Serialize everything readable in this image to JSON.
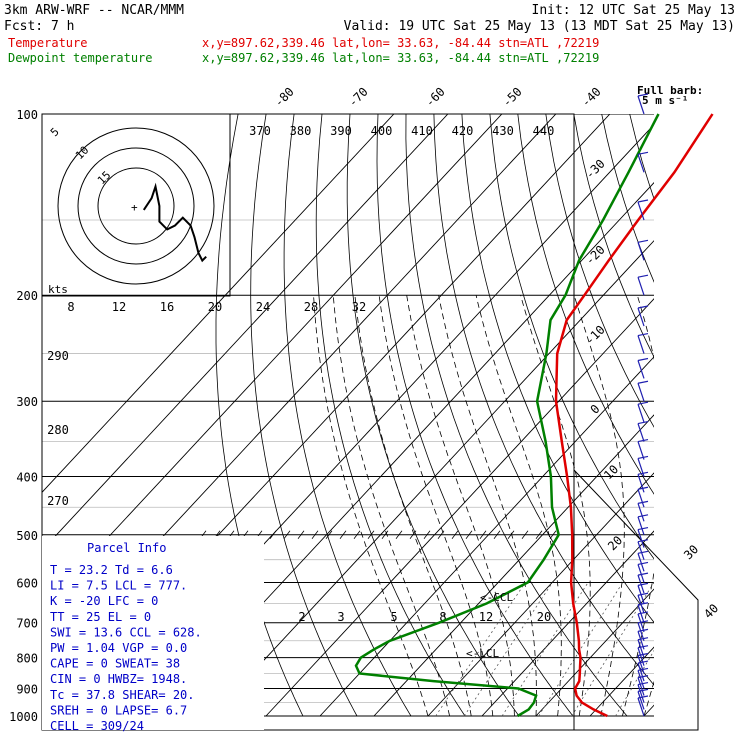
{
  "header": {
    "model": "3km ARW-WRF -- NCAR/MMM",
    "init": "Init: 12 UTC Sat 25 May 13",
    "fcst": "Fcst:    7 h",
    "valid": "Valid: 19 UTC Sat 25 May 13 (13 MDT Sat 25 May 13)",
    "temp_label": "Temperature",
    "temp_info": "x,y=897.62,339.46   lat,lon= 33.63, -84.44  stn=ATL ,72219",
    "dew_label": "Dewpoint temperature",
    "dew_info": "x,y=897.62,339.46   lat,lon= 33.63, -84.44  stn=ATL ,72219"
  },
  "colors": {
    "temperature": "#e00000",
    "dewpoint": "#008000",
    "parcel_text": "#0000c8",
    "wind": "#2020b0"
  },
  "full_barb": "Full barb:",
  "full_barb_units": "5 m s⁻¹",
  "hodograph": {
    "kts_label": "kts",
    "ring_labels": [
      "15",
      "10",
      "5"
    ],
    "speed_ticks": [
      "8",
      "12",
      "16",
      "20",
      "24",
      "28",
      "32"
    ]
  },
  "parcel_info": {
    "title": "Parcel Info",
    "rows": [
      "T  =   23.2 Td =   6.6",
      "LI =    7.5 LCL =  777.",
      "K  =    -20 LFC =    0",
      "TT =     25 EL  =    0",
      "SWI =  13.6 CCL =  628.",
      "PW =  1.04 VGP =  0.0",
      "CAPE =    0 SWEAT=   38",
      "CIN =     0 HWBZ= 1948.",
      "Tc =   37.8 SHEAR=  20.",
      "SREH =    0 LAPSE=  6.7",
      "CELL = 309/24"
    ]
  },
  "markers": {
    "ccl": "CCL",
    "lcl": "LCL"
  },
  "chart_data": {
    "type": "line",
    "title": "",
    "y_axis": {
      "scale": "log pressure",
      "ylim": [
        1000,
        100
      ],
      "ticks": [
        100,
        200,
        300,
        400,
        500,
        600,
        700,
        800,
        900,
        1000
      ]
    },
    "temperature_isotherm_labels": [
      "-80",
      "-70",
      "-60",
      "-50",
      "-40",
      "-30",
      "-20",
      "-10",
      "0",
      "10",
      "20",
      "30",
      "40"
    ],
    "theta_labels": [
      "370",
      "380",
      "390",
      "400",
      "410",
      "420",
      "430",
      "440"
    ],
    "left_theta_labels": [
      "290",
      "280",
      "270"
    ],
    "mixing_ratio_labels": [
      "2",
      "3",
      "5",
      "8",
      "12",
      "20"
    ],
    "series": [
      {
        "name": "Temperature",
        "pressure": [
          1000,
          975,
          950,
          925,
          900,
          875,
          850,
          825,
          800,
          775,
          750,
          700,
          650,
          600,
          550,
          500,
          450,
          400,
          350,
          300,
          250,
          220,
          200,
          175,
          150,
          125,
          100
        ],
        "temperature": [
          23.2,
          19.5,
          16.2,
          14.0,
          12.5,
          12.0,
          10.8,
          9.5,
          8.2,
          6.5,
          5.0,
          1.5,
          -2.5,
          -6.5,
          -10.2,
          -14.5,
          -19.5,
          -25.5,
          -32.5,
          -40.5,
          -48.5,
          -52.5,
          -53.5,
          -55.0,
          -56.5,
          -58.0,
          -61.0
        ]
      },
      {
        "name": "Dewpoint temperature",
        "pressure": [
          1000,
          975,
          950,
          925,
          900,
          875,
          850,
          825,
          800,
          775,
          750,
          700,
          650,
          600,
          550,
          500,
          450,
          400,
          350,
          300,
          250,
          220,
          200,
          175,
          150,
          125,
          100
        ],
        "temperature": [
          6.6,
          7.5,
          7.3,
          6.5,
          2.0,
          -15.0,
          -30.0,
          -32.0,
          -32.5,
          -31.5,
          -30.0,
          -24.0,
          -18.5,
          -14.5,
          -15.5,
          -17.0,
          -23.0,
          -28.5,
          -35.5,
          -44.0,
          -50.5,
          -55.5,
          -57.0,
          -60.5,
          -63.0,
          -66.5,
          -71.0
        ]
      }
    ],
    "hodograph_kts": [
      {
        "u": 2,
        "v": -1
      },
      {
        "u": 4,
        "v": 2
      },
      {
        "u": 5,
        "v": 5
      },
      {
        "u": 6,
        "v": 0
      },
      {
        "u": 6,
        "v": -4
      },
      {
        "u": 8,
        "v": -6
      },
      {
        "u": 10,
        "v": -5
      },
      {
        "u": 12,
        "v": -3
      },
      {
        "u": 14,
        "v": -5
      },
      {
        "u": 15,
        "v": -8
      },
      {
        "u": 16,
        "v": -12
      },
      {
        "u": 17,
        "v": -14
      },
      {
        "u": 18,
        "v": -13
      }
    ]
  }
}
